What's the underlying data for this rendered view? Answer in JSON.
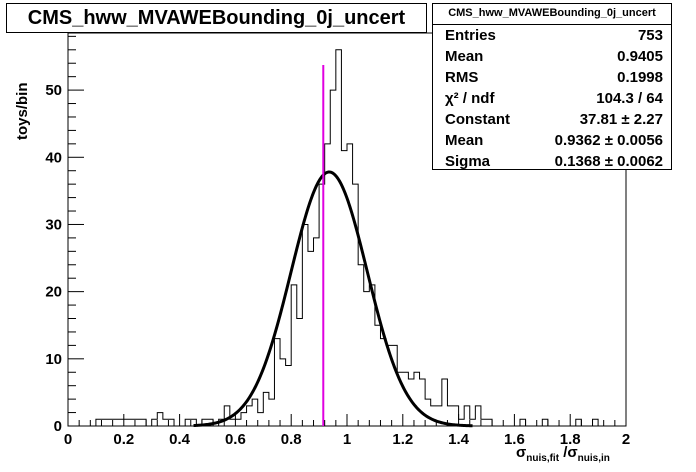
{
  "chart_data": {
    "type": "histogram",
    "title": "CMS_hww_MVAWEBounding_0j_uncert",
    "xlabel": "σnuis,fit/σnuis,in",
    "ylabel": "toys/bin",
    "xlim": [
      0,
      2
    ],
    "ylim": [
      0,
      58.5
    ],
    "xticks": [
      "0",
      "0.2",
      "0.4",
      "0.6",
      "0.8",
      "1",
      "1.2",
      "1.4",
      "1.6",
      "1.8",
      "2"
    ],
    "yticks": [
      "0",
      "10",
      "20",
      "30",
      "40",
      "50"
    ],
    "bin_width": 0.02,
    "bins": [
      {
        "x": 0.1,
        "y": 1
      },
      {
        "x": 0.12,
        "y": 1
      },
      {
        "x": 0.14,
        "y": 1
      },
      {
        "x": 0.16,
        "y": 1
      },
      {
        "x": 0.18,
        "y": 1
      },
      {
        "x": 0.2,
        "y": 1
      },
      {
        "x": 0.22,
        "y": 1
      },
      {
        "x": 0.24,
        "y": 1
      },
      {
        "x": 0.26,
        "y": 1
      },
      {
        "x": 0.28,
        "y": 0
      },
      {
        "x": 0.3,
        "y": 1
      },
      {
        "x": 0.32,
        "y": 2
      },
      {
        "x": 0.34,
        "y": 1
      },
      {
        "x": 0.36,
        "y": 1
      },
      {
        "x": 0.38,
        "y": 0
      },
      {
        "x": 0.4,
        "y": 0
      },
      {
        "x": 0.42,
        "y": 1
      },
      {
        "x": 0.44,
        "y": 1
      },
      {
        "x": 0.46,
        "y": 0
      },
      {
        "x": 0.48,
        "y": 1
      },
      {
        "x": 0.5,
        "y": 1
      },
      {
        "x": 0.52,
        "y": 0
      },
      {
        "x": 0.54,
        "y": 1
      },
      {
        "x": 0.56,
        "y": 3
      },
      {
        "x": 0.58,
        "y": 1
      },
      {
        "x": 0.6,
        "y": 1
      },
      {
        "x": 0.62,
        "y": 2
      },
      {
        "x": 0.64,
        "y": 3
      },
      {
        "x": 0.66,
        "y": 4
      },
      {
        "x": 0.68,
        "y": 2
      },
      {
        "x": 0.7,
        "y": 5
      },
      {
        "x": 0.72,
        "y": 4
      },
      {
        "x": 0.74,
        "y": 13
      },
      {
        "x": 0.76,
        "y": 10
      },
      {
        "x": 0.78,
        "y": 9
      },
      {
        "x": 0.8,
        "y": 21
      },
      {
        "x": 0.82,
        "y": 16
      },
      {
        "x": 0.84,
        "y": 30
      },
      {
        "x": 0.86,
        "y": 26
      },
      {
        "x": 0.88,
        "y": 28
      },
      {
        "x": 0.9,
        "y": 36
      },
      {
        "x": 0.92,
        "y": 42
      },
      {
        "x": 0.94,
        "y": 50
      },
      {
        "x": 0.96,
        "y": 56
      },
      {
        "x": 0.98,
        "y": 41
      },
      {
        "x": 1.0,
        "y": 42
      },
      {
        "x": 1.02,
        "y": 36
      },
      {
        "x": 1.04,
        "y": 24
      },
      {
        "x": 1.06,
        "y": 20
      },
      {
        "x": 1.08,
        "y": 21
      },
      {
        "x": 1.1,
        "y": 15
      },
      {
        "x": 1.12,
        "y": 13
      },
      {
        "x": 1.14,
        "y": 12
      },
      {
        "x": 1.16,
        "y": 12
      },
      {
        "x": 1.18,
        "y": 8
      },
      {
        "x": 1.2,
        "y": 8
      },
      {
        "x": 1.22,
        "y": 7
      },
      {
        "x": 1.24,
        "y": 8
      },
      {
        "x": 1.26,
        "y": 7
      },
      {
        "x": 1.28,
        "y": 4
      },
      {
        "x": 1.3,
        "y": 3
      },
      {
        "x": 1.32,
        "y": 3
      },
      {
        "x": 1.34,
        "y": 7
      },
      {
        "x": 1.36,
        "y": 3
      },
      {
        "x": 1.38,
        "y": 3
      },
      {
        "x": 1.4,
        "y": 1
      },
      {
        "x": 1.42,
        "y": 3
      },
      {
        "x": 1.44,
        "y": 1
      },
      {
        "x": 1.46,
        "y": 3
      },
      {
        "x": 1.48,
        "y": 1
      },
      {
        "x": 1.5,
        "y": 1
      },
      {
        "x": 1.52,
        "y": 0
      },
      {
        "x": 1.54,
        "y": 0
      },
      {
        "x": 1.56,
        "y": 0
      },
      {
        "x": 1.58,
        "y": 0
      },
      {
        "x": 1.6,
        "y": 0
      },
      {
        "x": 1.62,
        "y": 1
      },
      {
        "x": 1.64,
        "y": 0
      },
      {
        "x": 1.66,
        "y": 0
      },
      {
        "x": 1.68,
        "y": 0
      },
      {
        "x": 1.7,
        "y": 1
      },
      {
        "x": 1.72,
        "y": 0
      },
      {
        "x": 1.74,
        "y": 0
      },
      {
        "x": 1.76,
        "y": 0
      },
      {
        "x": 1.78,
        "y": 0
      },
      {
        "x": 1.8,
        "y": 0
      },
      {
        "x": 1.82,
        "y": 1
      },
      {
        "x": 1.84,
        "y": 0
      },
      {
        "x": 1.86,
        "y": 0
      },
      {
        "x": 1.88,
        "y": 1
      }
    ],
    "fit": {
      "constant": 37.81,
      "mean": 0.9362,
      "sigma": 0.1368
    },
    "marker_line": {
      "x": 0.915,
      "color": "#e000e0"
    },
    "stats_box": {
      "header": "CMS_hww_MVAWEBounding_0j_uncert",
      "rows": [
        {
          "label": "Entries",
          "value": "753"
        },
        {
          "label": "Mean",
          "value": "0.9405"
        },
        {
          "label": "RMS",
          "value": "0.1998"
        },
        {
          "label": "χ² / ndf",
          "value": "104.3 / 64"
        },
        {
          "label": "Constant",
          "value": "37.81 ± 2.27"
        },
        {
          "label": "Mean",
          "value": "0.9362 ± 0.0056"
        },
        {
          "label": "Sigma",
          "value": "0.1368 ± 0.0062"
        }
      ]
    }
  }
}
